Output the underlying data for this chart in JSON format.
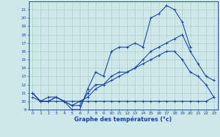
{
  "xlabel": "Graphe des températures (°c)",
  "bg_color": "#cce8e8",
  "line_color": "#1a3caa",
  "grid_color": "#aacccc",
  "x_hours": [
    0,
    1,
    2,
    3,
    4,
    5,
    6,
    7,
    8,
    9,
    10,
    11,
    12,
    13,
    14,
    15,
    16,
    17,
    18,
    19,
    20,
    21,
    22,
    23
  ],
  "ylim": [
    9,
    22
  ],
  "xlim": [
    -0.5,
    23.5
  ],
  "curve1": [
    11,
    10,
    10,
    10.5,
    10,
    9,
    9,
    11.5,
    13.5,
    13,
    16,
    16.5,
    16.5,
    17,
    16.5,
    20,
    20.5,
    21.5,
    21,
    19.5,
    16.5,
    null,
    null,
    null
  ],
  "curve2": [
    11,
    10,
    10.5,
    10.5,
    10,
    9.5,
    10,
    10.5,
    11.5,
    12,
    12.5,
    13,
    13.5,
    14,
    15,
    16,
    16.5,
    17,
    17.5,
    18,
    16,
    14.5,
    13,
    12.5
  ],
  "curve3": [
    10.5,
    10,
    10,
    10,
    10,
    10,
    10,
    10,
    10,
    10,
    10,
    10,
    10,
    10,
    10,
    10,
    10,
    10,
    10,
    10,
    10,
    10,
    10,
    10.5
  ],
  "curve4": [
    11,
    10,
    10,
    10.5,
    10,
    9.5,
    9.5,
    11,
    12,
    12,
    13,
    13.5,
    13.5,
    14,
    14.5,
    15,
    15.5,
    16,
    16,
    15,
    13.5,
    13,
    12,
    10.5
  ],
  "yticks": [
    9,
    10,
    11,
    12,
    13,
    14,
    15,
    16,
    17,
    18,
    19,
    20,
    21
  ],
  "xticks": [
    0,
    1,
    2,
    3,
    4,
    5,
    6,
    7,
    8,
    9,
    10,
    11,
    12,
    13,
    14,
    15,
    16,
    17,
    18,
    19,
    20,
    21,
    22,
    23
  ]
}
